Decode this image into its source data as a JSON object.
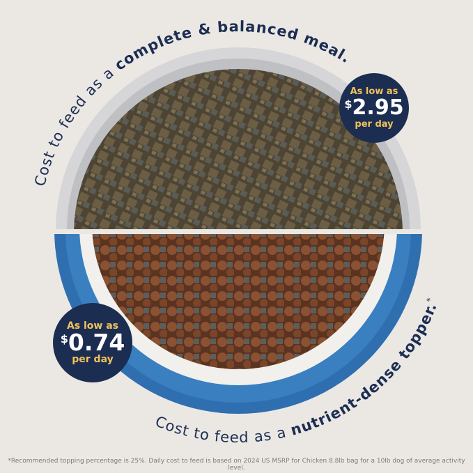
{
  "top_caption": {
    "regular": "Cost to feed as a ",
    "bold": "complete & balanced meal."
  },
  "bottom_caption": {
    "regular": "Cost to feed as a ",
    "bold": "nutrient-dense topper.",
    "mark": "*"
  },
  "badge_meal": {
    "label": "As low as",
    "currency": "$",
    "price": "2.95",
    "unit": "per day"
  },
  "badge_topper": {
    "label": "As low as",
    "currency": "$",
    "price": "0.74",
    "unit": "per day"
  },
  "footnote": "*Recommended topping percentage is 25%. Daily cost to feed is based on 2024 US MSRP for Chicken 8.8lb bag for a 10lb dog of average activity level.",
  "colors": {
    "navy": "#1c2d52",
    "gold": "#f0c25a",
    "blue_bowl": "#2f6fb0",
    "gray_bowl": "#d8d8da"
  }
}
